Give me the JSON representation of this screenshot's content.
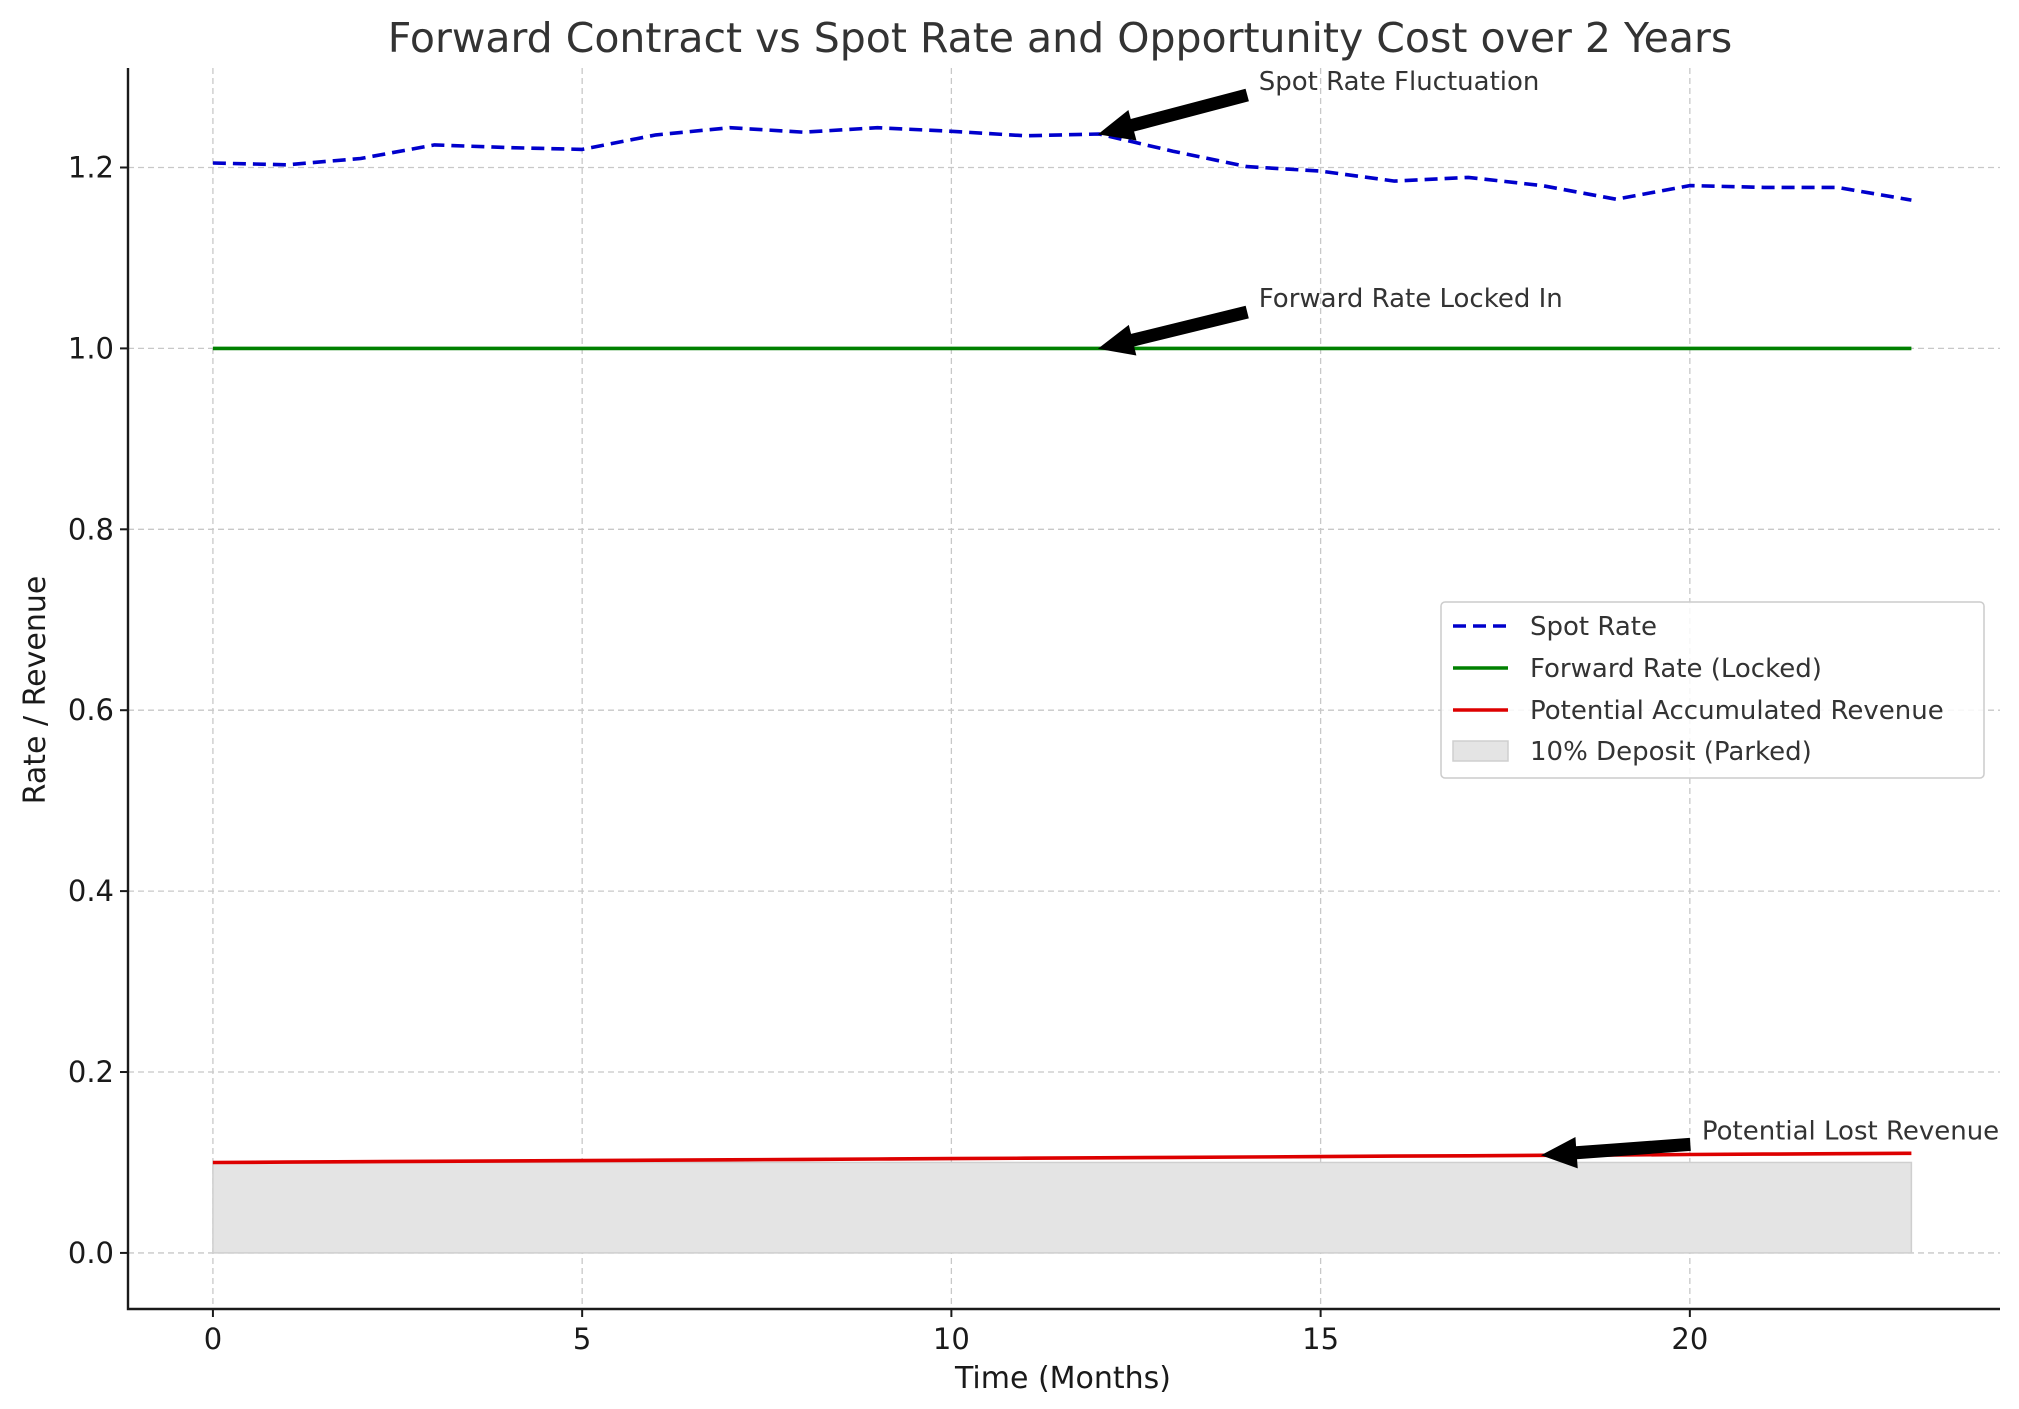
{
  "chart_data": {
    "type": "line",
    "title": "Forward Contract vs Spot Rate and Opportunity Cost over 2 Years",
    "xlabel": "Time (Months)",
    "ylabel": "Rate / Revenue",
    "xlim": [
      -1.15,
      24.2
    ],
    "ylim": [
      -0.062,
      1.31
    ],
    "xticks": [
      0,
      5,
      10,
      15,
      20
    ],
    "yticks": [
      0.0,
      0.2,
      0.4,
      0.6,
      0.8,
      1.0,
      1.2
    ],
    "xtick_labels": [
      "0",
      "5",
      "10",
      "15",
      "20"
    ],
    "ytick_labels": [
      "0.0",
      "0.2",
      "0.4",
      "0.6",
      "0.8",
      "1.0",
      "1.2"
    ],
    "grid": true,
    "legend_position": "center-right",
    "x": [
      0,
      1,
      2,
      3,
      4,
      5,
      6,
      7,
      8,
      9,
      10,
      11,
      12,
      13,
      14,
      15,
      16,
      17,
      18,
      19,
      20,
      21,
      22,
      23
    ],
    "series": [
      {
        "name": "Spot Rate",
        "style": "dashed",
        "color": "#0000cc",
        "values": [
          1.205,
          1.203,
          1.21,
          1.225,
          1.222,
          1.22,
          1.236,
          1.244,
          1.239,
          1.244,
          1.24,
          1.235,
          1.237,
          1.218,
          1.201,
          1.196,
          1.185,
          1.189,
          1.18,
          1.165,
          1.18,
          1.178,
          1.178,
          1.164
        ]
      },
      {
        "name": "Forward Rate (Locked)",
        "style": "solid",
        "color": "#008000",
        "values": [
          1.0,
          1.0,
          1.0,
          1.0,
          1.0,
          1.0,
          1.0,
          1.0,
          1.0,
          1.0,
          1.0,
          1.0,
          1.0,
          1.0,
          1.0,
          1.0,
          1.0,
          1.0,
          1.0,
          1.0,
          1.0,
          1.0,
          1.0,
          1.0
        ]
      },
      {
        "name": "Potential Accumulated Revenue",
        "style": "solid",
        "color": "#dd0000",
        "values": [
          0.1,
          0.1004,
          0.1008,
          0.1013,
          0.1017,
          0.1021,
          0.1025,
          0.103,
          0.1034,
          0.1038,
          0.1043,
          0.1047,
          0.1052,
          0.1056,
          0.1061,
          0.1065,
          0.107,
          0.1074,
          0.1079,
          0.1083,
          0.1088,
          0.1092,
          0.1097,
          0.1101
        ]
      }
    ],
    "fill": {
      "name": "10% Deposit (Parked)",
      "color": "#e4e4e4",
      "edge_color": "#cfcfcf",
      "y_top": 0.1,
      "x_range": [
        0,
        23
      ]
    },
    "annotations": [
      {
        "text": "Spot Rate Fluctuation",
        "text_x": 14,
        "text_y": 1.28,
        "arrow_x": 12,
        "arrow_y": 1.237
      },
      {
        "text": "Forward Rate Locked In",
        "text_x": 14,
        "text_y": 1.04,
        "arrow_x": 12,
        "arrow_y": 1.0
      },
      {
        "text": "Potential Lost Revenue",
        "text_x": 20,
        "text_y": 0.12,
        "arrow_x": 18,
        "arrow_y": 0.108
      }
    ]
  }
}
